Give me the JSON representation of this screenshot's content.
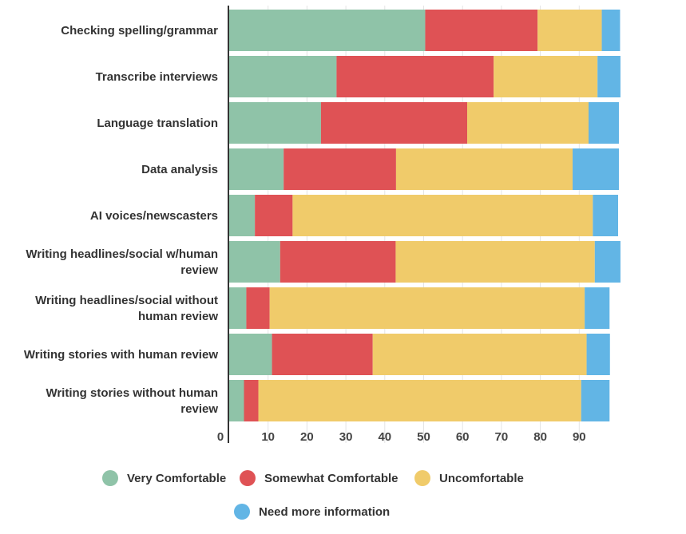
{
  "chart_data": {
    "type": "bar",
    "orientation": "horizontal",
    "stacked": true,
    "categories": [
      "Checking spelling/grammar",
      "Transcribe interviews",
      "Language translation",
      "Data analysis",
      "AI voices/newscasters",
      "Writing headlines/social w/human review",
      "Writing headlines/social without human review",
      "Writing stories with human review",
      "Writing stories without human review"
    ],
    "category_lines": [
      [
        "Checking spelling/grammar"
      ],
      [
        "Transcribe interviews"
      ],
      [
        "Language translation"
      ],
      [
        "Data analysis"
      ],
      [
        "AI voices/newscasters"
      ],
      [
        "Writing headlines/social w/human",
        "review"
      ],
      [
        "Writing headlines/social without",
        "human review"
      ],
      [
        "Writing stories with human review"
      ],
      [
        "Writing stories without human",
        "review"
      ]
    ],
    "series": [
      {
        "name": "Very Comfortable",
        "color": "#8fc3a8",
        "values": [
          50.4,
          27.6,
          23.6,
          14.0,
          6.6,
          13.1,
          4.4,
          11.0,
          3.8
        ]
      },
      {
        "name": "Somewhat Comfortable",
        "color": "#df5255",
        "values": [
          28.9,
          40.4,
          37.6,
          28.9,
          9.7,
          29.7,
          6.0,
          25.9,
          3.7
        ]
      },
      {
        "name": "Uncomfortable",
        "color": "#f0cb6a",
        "values": [
          16.5,
          26.7,
          31.2,
          45.4,
          77.2,
          51.2,
          81.0,
          55.0,
          83.0
        ]
      },
      {
        "name": "Need more information",
        "color": "#62b5e5",
        "values": [
          4.7,
          5.9,
          7.8,
          11.9,
          6.5,
          6.6,
          6.4,
          6.0,
          7.3
        ]
      }
    ],
    "x_ticks": [
      "0",
      "10",
      "20",
      "30",
      "40",
      "50",
      "60",
      "70",
      "80",
      "90"
    ],
    "xlim": [
      0,
      100
    ],
    "grid": true,
    "legend_position": "bottom"
  }
}
